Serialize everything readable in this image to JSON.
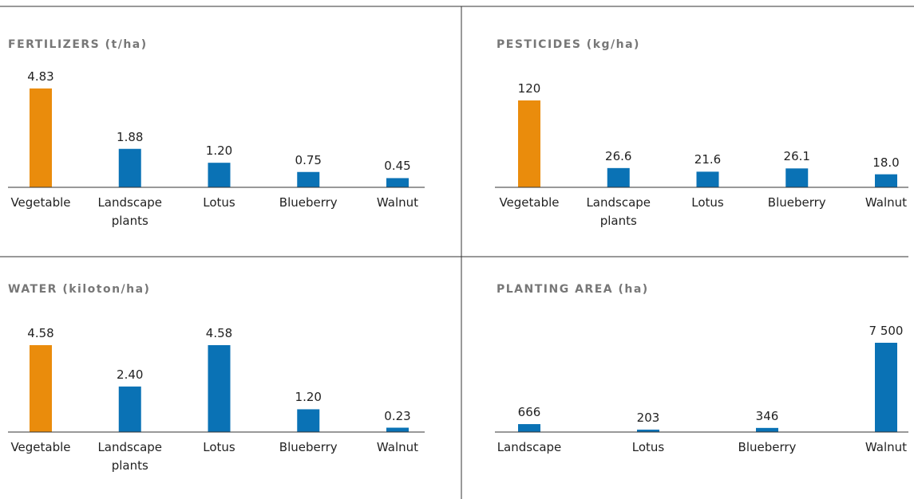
{
  "chart_data": [
    {
      "type": "bar",
      "title": "FERTILIZERS (t/ha)",
      "categories": [
        "Vegetable",
        "Landscape plants",
        "Lotus",
        "Blueberry",
        "Walnut"
      ],
      "values": [
        4.83,
        1.88,
        1.2,
        0.75,
        0.45
      ],
      "value_labels": [
        "4.83",
        "1.88",
        "1.20",
        "0.75",
        "0.45"
      ],
      "colors": [
        "#ea8c0c",
        "#0a72b5",
        "#0a72b5",
        "#0a72b5",
        "#0a72b5"
      ]
    },
    {
      "type": "bar",
      "title": "PESTICIDES (kg/ha)",
      "categories": [
        "Vegetable",
        "Landscape plants",
        "Lotus",
        "Blueberry",
        "Walnut"
      ],
      "values": [
        120,
        26.6,
        21.6,
        26.1,
        18.0
      ],
      "value_labels": [
        "120",
        "26.6",
        "21.6",
        "26.1",
        "18.0"
      ],
      "colors": [
        "#ea8c0c",
        "#0a72b5",
        "#0a72b5",
        "#0a72b5",
        "#0a72b5"
      ]
    },
    {
      "type": "bar",
      "title": "WATER (kiloton/ha)",
      "categories": [
        "Vegetable",
        "Landscape plants",
        "Lotus",
        "Blueberry",
        "Walnut"
      ],
      "values": [
        4.58,
        2.4,
        4.58,
        1.2,
        0.23
      ],
      "value_labels": [
        "4.58",
        "2.40",
        "4.58",
        "1.20",
        "0.23"
      ],
      "colors": [
        "#ea8c0c",
        "#0a72b5",
        "#0a72b5",
        "#0a72b5",
        "#0a72b5"
      ]
    },
    {
      "type": "bar",
      "title": "PLANTING AREA (ha)",
      "categories": [
        "Landscape",
        "Lotus",
        "Blueberry",
        "Walnut"
      ],
      "values": [
        666,
        203,
        346,
        7500
      ],
      "value_labels": [
        "666",
        "203",
        "346",
        "7 500"
      ],
      "colors": [
        "#0a72b5",
        "#0a72b5",
        "#0a72b5",
        "#0a72b5"
      ]
    }
  ]
}
